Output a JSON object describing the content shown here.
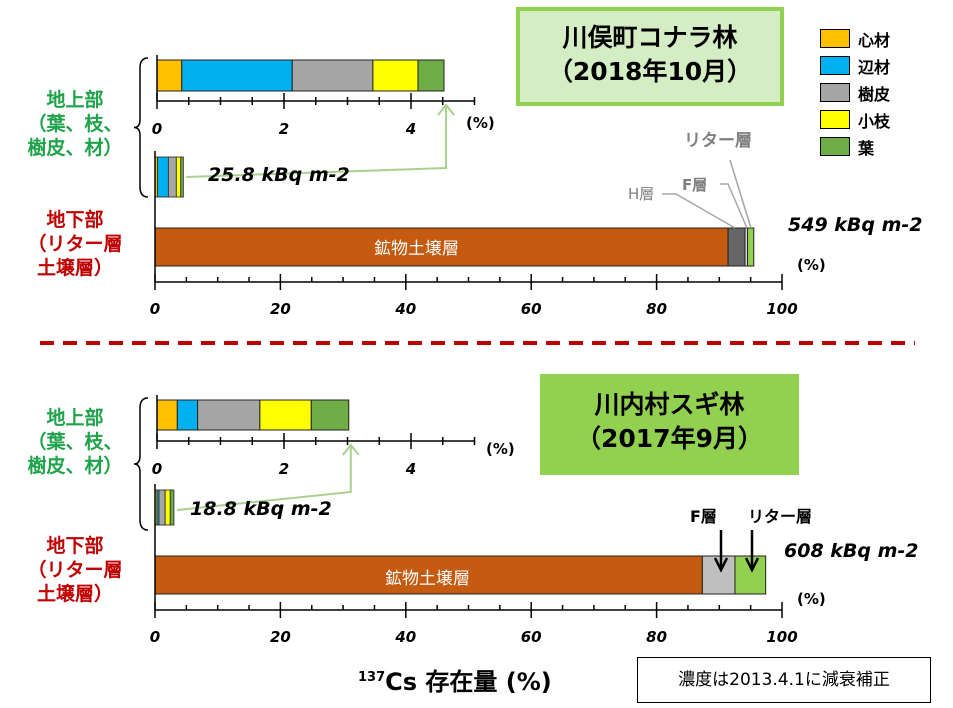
{
  "colors": {
    "heartwood": "#ffc000",
    "sapwood": "#00b0f0",
    "bark": "#a6a6a6",
    "branch": "#ffff00",
    "leaf": "#70ad47",
    "mineral_soil": "#c55a11",
    "h_layer": "#666666",
    "f_layer_top": "#d9d9d9",
    "f_layer_bottom": "#bfbfbf",
    "litter": "#92d050",
    "divider": "#c00000",
    "aboveground_label": "#1fa34a",
    "belowground_label": "#c00000"
  },
  "legend": [
    {
      "key": "heartwood",
      "label": "心材"
    },
    {
      "key": "sapwood",
      "label": "辺材"
    },
    {
      "key": "bark",
      "label": "樹皮"
    },
    {
      "key": "branch",
      "label": "小枝"
    },
    {
      "key": "leaf",
      "label": "葉"
    }
  ],
  "side_labels": {
    "above": [
      "地上部",
      "（葉、枝、",
      "樹皮、材）"
    ],
    "below": [
      "地下部",
      "（リター層",
      "土壌層）"
    ]
  },
  "xlabel_sup": "137",
  "xlabel": "Cs 存在量 (%)",
  "note": "濃度は2013.4.1に減衰補正",
  "chart_data": [
    {
      "type": "bar",
      "stacked": true,
      "title": [
        "川俣町コナラ林",
        "（2018年10月）"
      ],
      "total_above": "25.8 kBq m-2",
      "total_below": "549 kBq m-2",
      "unit": "(%)",
      "inset": {
        "xlim": [
          0,
          5
        ],
        "ticks": [
          "0",
          "2",
          "4"
        ],
        "unit": "(%)",
        "series": [
          {
            "name": "心材",
            "key": "heartwood",
            "value": 0.39
          },
          {
            "name": "辺材",
            "key": "sapwood",
            "value": 1.74
          },
          {
            "name": "樹皮",
            "key": "bark",
            "value": 1.27
          },
          {
            "name": "小枝",
            "key": "branch",
            "value": 0.71
          },
          {
            "name": "葉",
            "key": "leaf",
            "value": 0.41
          }
        ]
      },
      "main": {
        "xlim": [
          0,
          100
        ],
        "ticks": [
          "0",
          "20",
          "40",
          "60",
          "80",
          "100"
        ],
        "series": [
          {
            "name": "鉱物土壌層",
            "key": "mineral_soil",
            "value": 91.4
          },
          {
            "name": "H層",
            "key": "h_layer",
            "value": 2.7
          },
          {
            "name": "F層",
            "key": "f_layer_top",
            "value": 0.4
          },
          {
            "name": "リター層",
            "key": "litter",
            "value": 1.0
          }
        ]
      }
    },
    {
      "type": "bar",
      "stacked": true,
      "title": [
        "川内村スギ林",
        "（2017年9月）"
      ],
      "total_above": "18.8 kBq m-2",
      "total_below": "608 kBq m-2",
      "unit": "(%)",
      "inset": {
        "xlim": [
          0,
          5
        ],
        "ticks": [
          "0",
          "2",
          "4"
        ],
        "unit": "(%)",
        "series": [
          {
            "name": "心材",
            "key": "heartwood",
            "value": 0.32
          },
          {
            "name": "辺材",
            "key": "sapwood",
            "value": 0.32
          },
          {
            "name": "樹皮",
            "key": "bark",
            "value": 0.98
          },
          {
            "name": "小枝",
            "key": "branch",
            "value": 0.81
          },
          {
            "name": "葉",
            "key": "leaf",
            "value": 0.59
          }
        ]
      },
      "main": {
        "xlim": [
          0,
          100
        ],
        "ticks": [
          "0",
          "20",
          "40",
          "60",
          "80",
          "100"
        ],
        "series": [
          {
            "name": "鉱物土壌層",
            "key": "mineral_soil",
            "value": 87.3
          },
          {
            "name": "F層",
            "key": "f_layer_bottom",
            "value": 5.2
          },
          {
            "name": "リター層",
            "key": "litter",
            "value": 4.9
          }
        ]
      }
    }
  ]
}
